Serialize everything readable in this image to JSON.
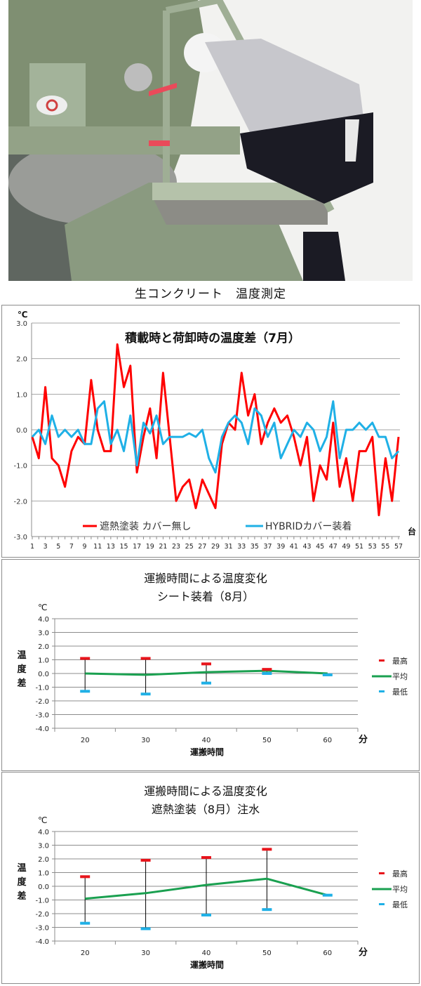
{
  "photo": {
    "description": "worker in white helmet leaning over platform of green concrete mixer truck measuring temperature"
  },
  "photo_caption": "生コンクリート　温度測定",
  "chart_data": [
    {
      "type": "line",
      "title": "積載時と荷卸時の温度差（7月）",
      "ylabel": "℃",
      "xlabel_unit": "台",
      "ylim": [
        -3.0,
        3.0
      ],
      "yticks": [
        "3.0",
        "2.0",
        "1.0",
        "0.0",
        "-1.0",
        "-2.0",
        "-3.0"
      ],
      "ytick_values": [
        3,
        2,
        1,
        0,
        -1,
        -2,
        -3
      ],
      "x": [
        1,
        2,
        3,
        4,
        5,
        6,
        7,
        8,
        9,
        10,
        11,
        12,
        13,
        14,
        15,
        16,
        17,
        18,
        19,
        20,
        21,
        22,
        23,
        24,
        25,
        26,
        27,
        28,
        29,
        30,
        31,
        32,
        33,
        34,
        35,
        36,
        37,
        38,
        39,
        40,
        41,
        42,
        43,
        44,
        45,
        46,
        47,
        48,
        49,
        50,
        51,
        52,
        53,
        54,
        55,
        56,
        57
      ],
      "xtick_labels": [
        "1",
        "3",
        "5",
        "7",
        "9",
        "11",
        "13",
        "15",
        "17",
        "19",
        "21",
        "23",
        "25",
        "27",
        "29",
        "31",
        "33",
        "35",
        "37",
        "39",
        "41",
        "43",
        "45",
        "47",
        "49",
        "51",
        "53",
        "55",
        "57"
      ],
      "grid": true,
      "legend_position": "bottom",
      "series": [
        {
          "name": "遮熱塗装 カバー無し",
          "color": "#ff0000",
          "values": [
            -0.2,
            -0.8,
            1.2,
            -0.8,
            -1.0,
            -1.6,
            -0.6,
            -0.2,
            -0.4,
            1.4,
            0.0,
            -0.6,
            -0.6,
            2.4,
            1.2,
            1.8,
            -1.2,
            -0.2,
            0.6,
            -0.8,
            1.6,
            -0.2,
            -2.0,
            -1.6,
            -1.4,
            -2.2,
            -1.4,
            -1.8,
            -2.2,
            -0.4,
            0.2,
            0.0,
            1.6,
            0.4,
            1.0,
            -0.4,
            0.2,
            0.6,
            0.2,
            0.4,
            -0.2,
            -1.0,
            -0.2,
            -2.0,
            -1.0,
            -1.4,
            0.2,
            -1.6,
            -0.8,
            -2.0,
            -0.6,
            -0.6,
            -0.2,
            -2.4,
            -0.8,
            -2.0,
            -0.2
          ]
        },
        {
          "name": "HYBRIDカバー装着",
          "color": "#1fb0e6",
          "values": [
            -0.2,
            0.0,
            -0.4,
            0.4,
            -0.2,
            0.0,
            -0.2,
            0.0,
            -0.4,
            -0.4,
            0.6,
            0.8,
            -0.4,
            0.0,
            -0.6,
            0.4,
            -1.0,
            0.2,
            -0.1,
            0.4,
            -0.4,
            -0.2,
            -0.2,
            -0.2,
            -0.1,
            -0.2,
            0.0,
            -0.8,
            -1.2,
            -0.2,
            0.2,
            0.4,
            0.2,
            -0.4,
            0.6,
            0.4,
            -0.2,
            0.2,
            -0.8,
            -0.4,
            0.0,
            -0.2,
            0.2,
            0.0,
            -0.6,
            -0.2,
            0.8,
            -0.8,
            0.0,
            0.0,
            0.2,
            0.0,
            0.2,
            -0.2,
            -0.2,
            -0.8,
            -0.6
          ]
        }
      ]
    },
    {
      "type": "line",
      "title": "運搬時間による温度変化",
      "subtitle": "シート装着（8月）",
      "ylabel": "温度差",
      "yunit": "℃",
      "xlabel": "運搬時間",
      "xunit": "分",
      "ylim": [
        -4.0,
        4.0
      ],
      "yticks": [
        "4.0",
        "3.0",
        "2.0",
        "1.0",
        "0.0",
        "-1.0",
        "-2.0",
        "-3.0",
        "-4.0"
      ],
      "ytick_values": [
        4,
        3,
        2,
        1,
        0,
        -1,
        -2,
        -3,
        -4
      ],
      "categories": [
        "20",
        "30",
        "40",
        "50",
        "60"
      ],
      "grid": true,
      "legend_position": "right",
      "series": [
        {
          "name": "最高",
          "color": "#e8141b",
          "marker": "dash",
          "values": [
            1.1,
            1.1,
            0.7,
            0.3,
            null
          ]
        },
        {
          "name": "平均",
          "color": "#1aa050",
          "marker": "line",
          "values": [
            0.0,
            -0.1,
            0.1,
            0.2,
            0.0
          ]
        },
        {
          "name": "最低",
          "color": "#1fb0e6",
          "marker": "dash",
          "values": [
            -1.3,
            -1.5,
            -0.7,
            0.0,
            -0.1
          ]
        }
      ]
    },
    {
      "type": "line",
      "title": "運搬時間による温度変化",
      "subtitle": "遮熱塗装（8月）注水",
      "ylabel": "温度差",
      "yunit": "℃",
      "xlabel": "運搬時間",
      "xunit": "分",
      "ylim": [
        -4.0,
        4.0
      ],
      "yticks": [
        "4.0",
        "3.0",
        "2.0",
        "1.0",
        "0.0",
        "-1.0",
        "-2.0",
        "-3.0",
        "-4.0"
      ],
      "ytick_values": [
        4,
        3,
        2,
        1,
        0,
        -1,
        -2,
        -3,
        -4
      ],
      "categories": [
        "20",
        "30",
        "40",
        "50",
        "60"
      ],
      "grid": true,
      "legend_position": "right",
      "series": [
        {
          "name": "最高",
          "color": "#e8141b",
          "marker": "dash",
          "values": [
            0.7,
            1.9,
            2.1,
            2.7,
            null
          ]
        },
        {
          "name": "平均",
          "color": "#1aa050",
          "marker": "line",
          "values": [
            -0.9,
            -0.5,
            0.1,
            0.55,
            -0.65
          ]
        },
        {
          "name": "最低",
          "color": "#1fb0e6",
          "marker": "dash",
          "values": [
            -2.7,
            -3.1,
            -2.1,
            -1.7,
            -0.65
          ]
        }
      ]
    }
  ]
}
